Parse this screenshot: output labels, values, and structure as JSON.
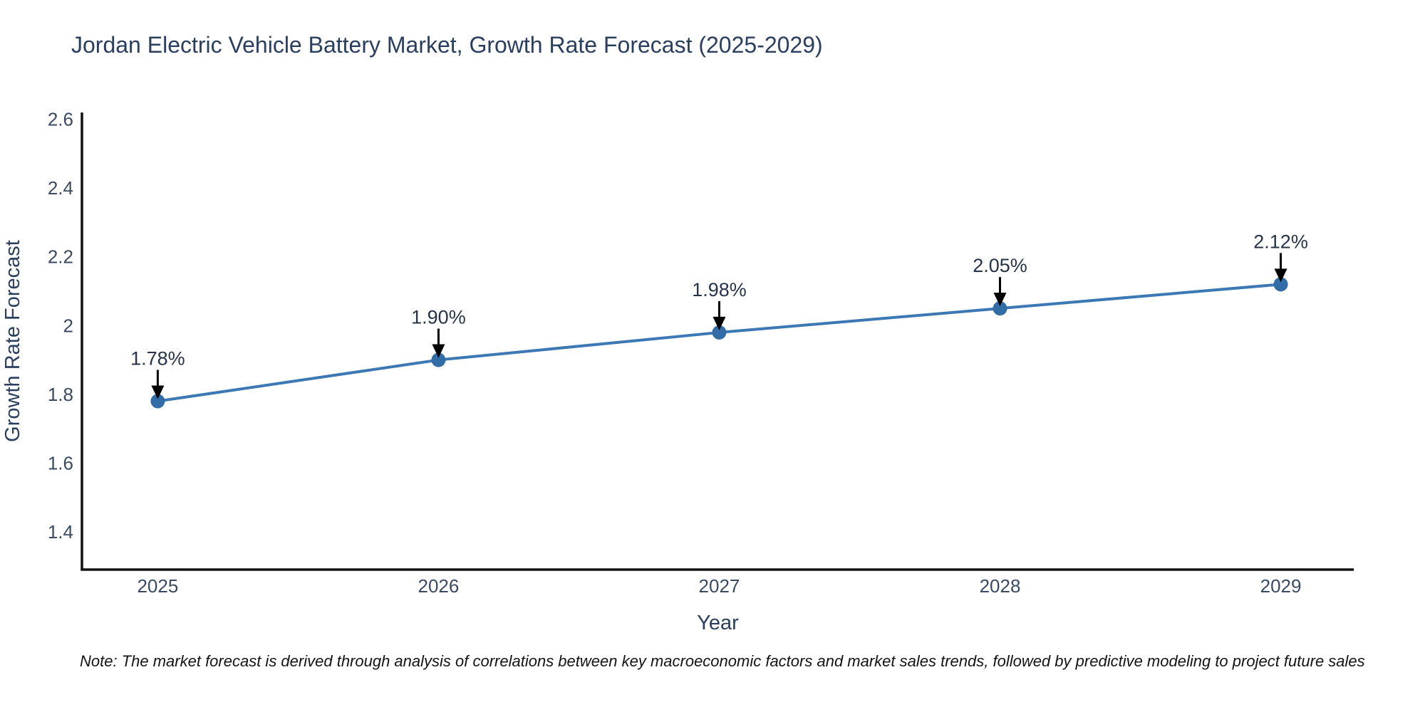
{
  "header": {
    "title": "Jordan Electric Vehicle Battery Market, Growth Rate Forecast (2025-2029)"
  },
  "footnote": {
    "text": "Note: The market forecast is derived through analysis of correlations between key macroeconomic factors and market sales trends, followed by predictive modeling to project future sales"
  },
  "chart_data": {
    "type": "line",
    "title": "Jordan Electric Vehicle Battery Market, Growth Rate Forecast (2025-2029)",
    "xlabel": "Year",
    "ylabel": "Growth Rate Forecast",
    "categories": [
      "2025",
      "2026",
      "2027",
      "2028",
      "2029"
    ],
    "x_values": [
      2025,
      2026,
      2027,
      2028,
      2029
    ],
    "series": [
      {
        "name": "Growth Rate Forecast",
        "values": [
          1.78,
          1.9,
          1.98,
          2.05,
          2.12
        ]
      }
    ],
    "point_labels": [
      "1.78%",
      "1.90%",
      "1.98%",
      "2.05%",
      "2.12%"
    ],
    "y_ticks": [
      1.4,
      1.6,
      1.8,
      2,
      2.2,
      2.4,
      2.6
    ],
    "y_tick_labels": [
      "1.4",
      "1.6",
      "1.8",
      "2",
      "2.2",
      "2.4",
      "2.6"
    ],
    "xlim": [
      2024.73,
      2029.26
    ],
    "ylim": [
      1.29,
      2.62
    ],
    "grid": false,
    "legend": false,
    "colors": {
      "line": "#3c78b4",
      "marker": "#336da8",
      "axis": "#111111",
      "arrow": "#000000",
      "tick_text": "#3b4a63",
      "title_text": "#2a3f5f"
    }
  }
}
